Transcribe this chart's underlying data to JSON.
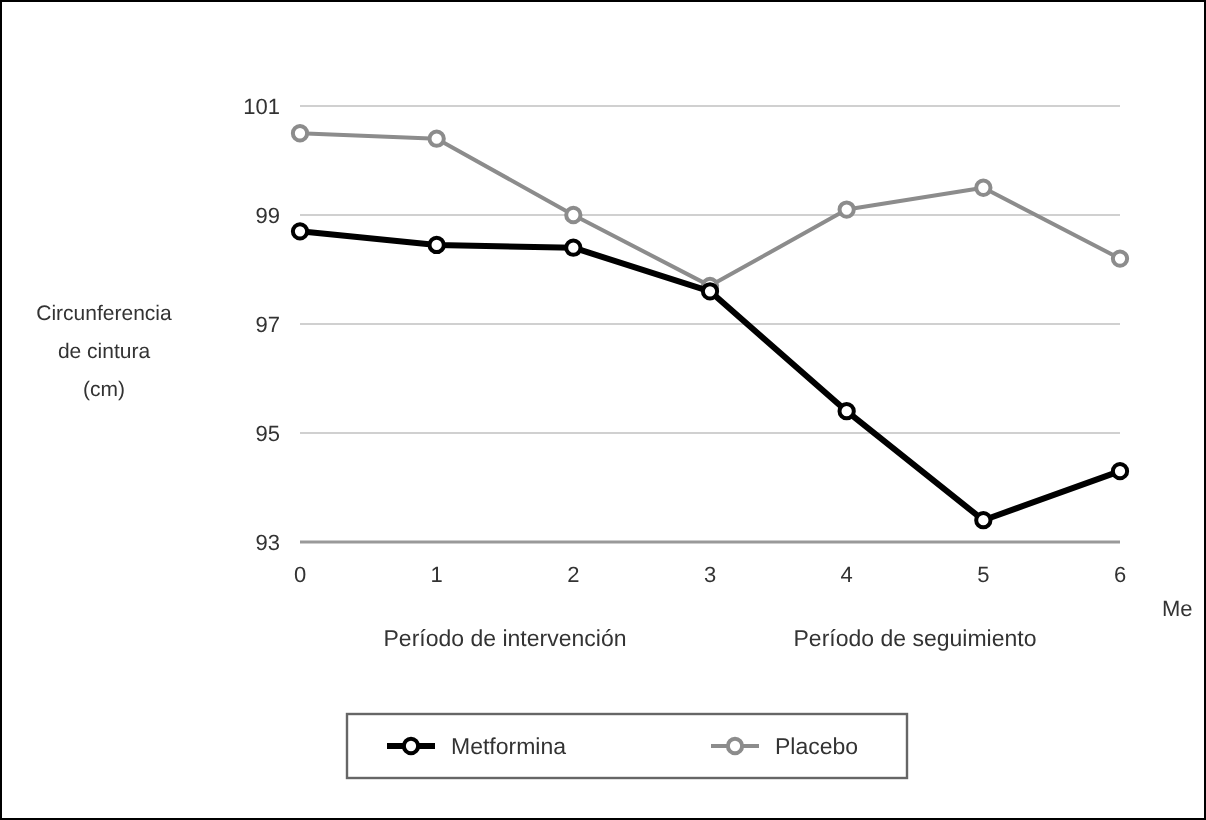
{
  "chart_data": {
    "type": "line",
    "ylabel": "Circunferencia de cintura (cm)",
    "xlabel": "Me",
    "x": [
      0,
      1,
      2,
      3,
      4,
      5,
      6
    ],
    "xlim": [
      0,
      6
    ],
    "xticks": [
      0,
      1,
      2,
      3,
      4,
      5,
      6
    ],
    "ylim": [
      93,
      101
    ],
    "yticks": [
      93,
      95,
      97,
      99,
      101
    ],
    "grid": "y",
    "legend": "bottom",
    "marker": "circle",
    "annotations": [
      "Período de intervención",
      "Período de seguimiento"
    ],
    "series": [
      {
        "name": "Metformina",
        "color": "#000000",
        "values": [
          98.7,
          98.45,
          98.4,
          97.6,
          95.4,
          93.4,
          94.3
        ]
      },
      {
        "name": "Placebo",
        "color": "#8c8c8c",
        "values": [
          100.5,
          100.4,
          99.0,
          97.7,
          99.1,
          99.5,
          98.2
        ]
      }
    ]
  }
}
